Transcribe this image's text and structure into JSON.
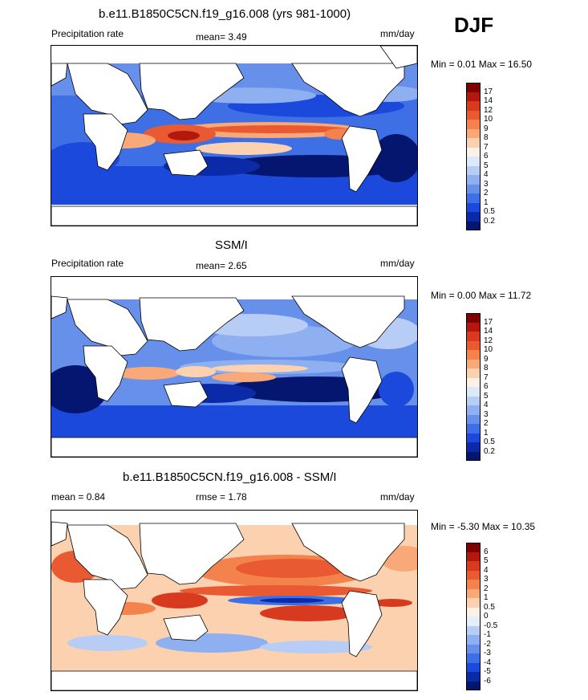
{
  "season": "DJF",
  "panels": [
    {
      "title": "b.e11.B1850C5CN.f19_g16.008 (yrs 981-1000)",
      "left_label": "Precipitation rate",
      "mid_label": "mean=   3.49",
      "unit": "mm/day",
      "minmax": "Min =   0.01 Max =  16.50",
      "colorbar_levels": [
        "17",
        "14",
        "12",
        "10",
        "9",
        "8",
        "7",
        "6",
        "5",
        "4",
        "3",
        "2",
        "1",
        "0.5",
        "0.2"
      ]
    },
    {
      "title": "SSM/I",
      "left_label": "Precipitation rate",
      "mid_label": "mean=   2.65",
      "unit": "mm/day",
      "minmax": "Min =   0.00 Max =  11.72",
      "colorbar_levels": [
        "17",
        "14",
        "12",
        "10",
        "9",
        "8",
        "7",
        "6",
        "5",
        "4",
        "3",
        "2",
        "1",
        "0.5",
        "0.2"
      ]
    },
    {
      "title": "b.e11.B1850C5CN.f19_g16.008 - SSM/I",
      "left_label": "mean =   0.84",
      "mid_label": "rmse =   1.78",
      "unit": "mm/day",
      "minmax": "Min =  -5.30 Max =  10.35",
      "colorbar_levels": [
        "6",
        "5",
        "4",
        "3",
        "2",
        "1",
        "0.5",
        "0",
        "-0.5",
        "-1",
        "-2",
        "-3",
        "-4",
        "-5",
        "-6"
      ]
    }
  ],
  "colors": {
    "precip_scale": [
      "#7f0000",
      "#b3180f",
      "#d73a1f",
      "#ea5a32",
      "#f4824d",
      "#f9a978",
      "#fcd1b0",
      "#fdf0e4",
      "#dce9fb",
      "#b7cdf6",
      "#8eaff0",
      "#6690ea",
      "#3f6fe5",
      "#1a49db",
      "#0b2aa8",
      "#041670"
    ],
    "diff_scale": [
      "#7f0000",
      "#b3180f",
      "#d73a1f",
      "#ea5a32",
      "#f4824d",
      "#f9a978",
      "#fcd1b0",
      "#fdf0e4",
      "#e4eefc",
      "#b7cdf6",
      "#8eaff0",
      "#6690ea",
      "#3f6fe5",
      "#1a49db",
      "#0b2aa8",
      "#041670"
    ]
  }
}
